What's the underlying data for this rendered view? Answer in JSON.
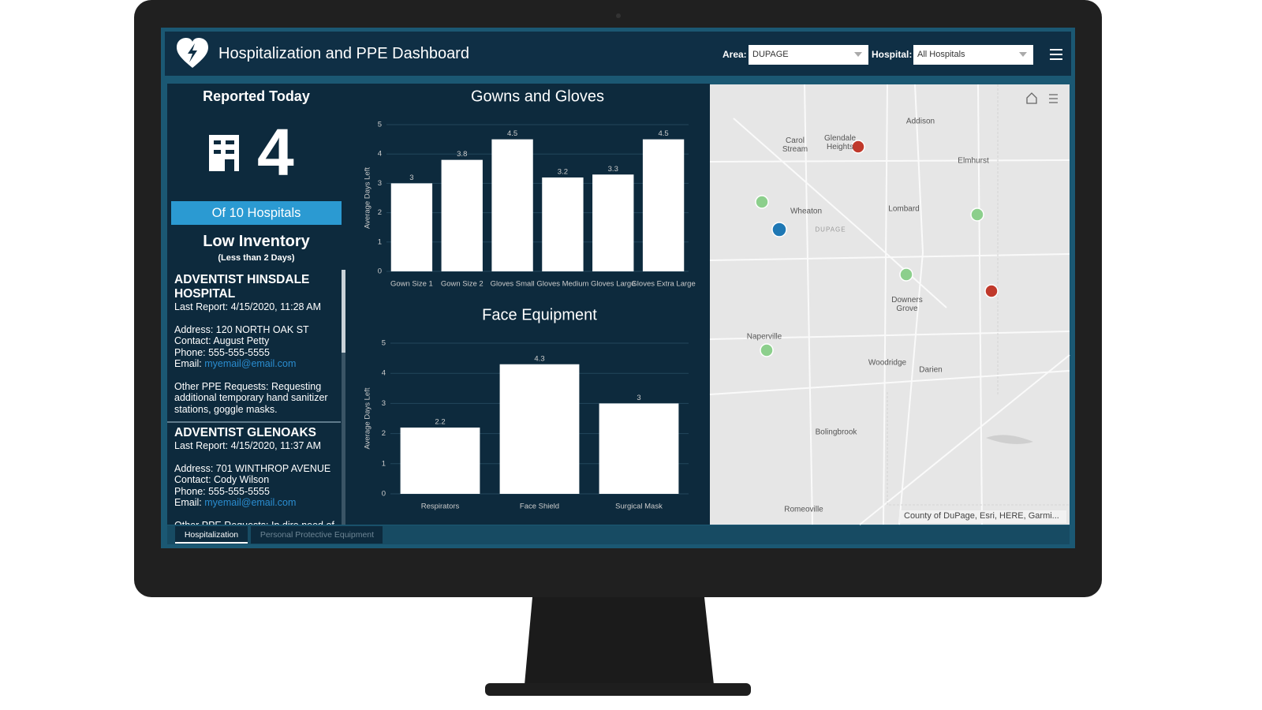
{
  "header": {
    "title": "Hospitalization and PPE Dashboard",
    "filters": [
      {
        "label": "Area:",
        "value": "DUPAGE"
      },
      {
        "label": "Hospital:",
        "value": "All Hospitals"
      }
    ]
  },
  "summary": {
    "title": "Reported Today",
    "count": 4,
    "subtitle": "Of 10 Hospitals"
  },
  "inventory": {
    "title": "Low Inventory",
    "subtitle": "(Less than 2 Days)",
    "hospitals": [
      {
        "name": "ADVENTIST HINSDALE HOSPITAL",
        "last_report": "Last Report: 4/15/2020, 11:28 AM",
        "address": "Address: 120 NORTH OAK ST",
        "contact": "Contact: August Petty",
        "phone": "Phone: 555-555-5555",
        "email_label": "Email:",
        "email": "myemail@email.com",
        "other_requests": "Other PPE Requests: Requesting additional temporary hand sanitizer stations, goggle masks."
      },
      {
        "name": "ADVENTIST GLENOAKS",
        "last_report": "Last Report: 4/15/2020, 11:37 AM",
        "address": "Address: 701 WINTHROP AVENUE",
        "contact": "Contact: Cody Wilson",
        "phone": "Phone: 555-555-5555",
        "email_label": "Email:",
        "email": "myemail@email.com",
        "other_requests": "Other PPE Requests: In dire need of"
      }
    ]
  },
  "tabs": [
    "Hospitalization",
    "Personal Protective Equipment"
  ],
  "map": {
    "labels": [
      "Addison",
      "Carol Stream",
      "Glendale Heights",
      "Elmhurst",
      "Wheaton",
      "DUPAGE",
      "Lombard",
      "Downers Grove",
      "Naperville",
      "Woodridge",
      "Darien",
      "Bolingbrook",
      "Romeoville"
    ],
    "attribution": "County of DuPage, Esri, HERE, Garmi..."
  },
  "chart_data": [
    {
      "type": "bar",
      "title": "Gowns and Gloves",
      "y_label": "Average Days Left",
      "categories": [
        "Gown Size 1",
        "Gown Size 2",
        "Gloves Small",
        "Gloves Medium",
        "Gloves Large",
        "Gloves Extra Large"
      ],
      "values": [
        3,
        3.8,
        4.5,
        3.2,
        3.3,
        4.5
      ],
      "color": "#ffffff",
      "ylim": [
        0,
        5
      ],
      "yticks": [
        0,
        1,
        2,
        3,
        4,
        5
      ],
      "grid": true
    },
    {
      "type": "bar",
      "title": "Face Equipment",
      "y_label": "Average Days Left",
      "categories": [
        "Respirators",
        "Face Shield",
        "Surgical Mask"
      ],
      "values": [
        2.2,
        4.3,
        3
      ],
      "color": "#ffffff",
      "ylim": [
        0,
        5
      ],
      "yticks": [
        0,
        1,
        2,
        3,
        4,
        5
      ],
      "grid": true
    }
  ]
}
